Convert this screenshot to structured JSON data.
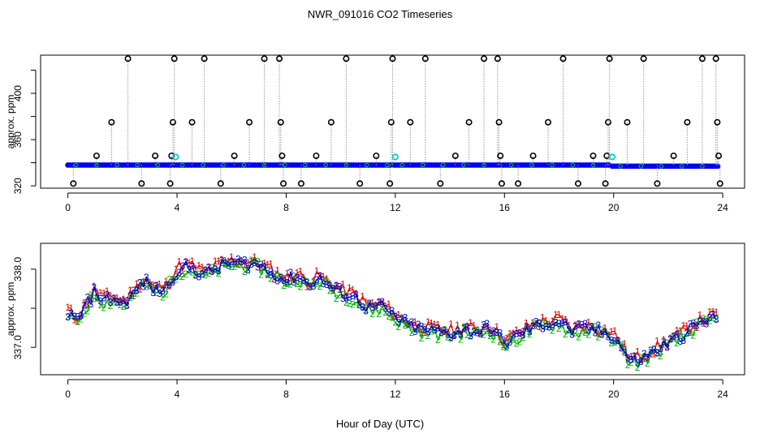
{
  "figure": {
    "title": "NWR_091016  CO2 Timeseries",
    "xlabel": "Hour of Day (UTC)"
  },
  "chart_data": [
    {
      "type": "scatter",
      "panel": "top",
      "title": "NWR_091016  CO2 Timeseries",
      "xlabel": "",
      "ylabel": "approx. ppm",
      "xlim": [
        -1,
        24.8
      ],
      "ylim": [
        318,
        433
      ],
      "xticks": [
        "0",
        "4",
        "8",
        "12",
        "16",
        "20",
        "24"
      ],
      "yticks": [
        "320",
        "360",
        "400"
      ],
      "baseline_segments": [
        {
          "x0": 0.0,
          "x1": 3.85,
          "y": 338
        },
        {
          "x0": 3.9,
          "x1": 11.85,
          "y": 338
        },
        {
          "x0": 11.95,
          "x1": 15.85,
          "y": 338
        },
        {
          "x0": 15.95,
          "x1": 19.85,
          "y": 338
        },
        {
          "x0": 19.95,
          "x1": 23.85,
          "y": 337
        }
      ],
      "high_flags": [
        {
          "x": 0.2,
          "y": 322
        },
        {
          "x": 1.05,
          "y": 346
        },
        {
          "x": 1.6,
          "y": 375
        },
        {
          "x": 2.2,
          "y": 430
        },
        {
          "x": 2.7,
          "y": 322
        },
        {
          "x": 3.2,
          "y": 346
        },
        {
          "x": 3.75,
          "y": 322
        },
        {
          "x": 3.8,
          "y": 346
        },
        {
          "x": 3.85,
          "y": 375
        },
        {
          "x": 3.9,
          "y": 430
        },
        {
          "x": 4.55,
          "y": 375
        },
        {
          "x": 5.0,
          "y": 430
        },
        {
          "x": 5.6,
          "y": 322
        },
        {
          "x": 6.1,
          "y": 346
        },
        {
          "x": 6.65,
          "y": 375
        },
        {
          "x": 7.2,
          "y": 430
        },
        {
          "x": 7.75,
          "y": 430
        },
        {
          "x": 7.8,
          "y": 375
        },
        {
          "x": 7.85,
          "y": 346
        },
        {
          "x": 7.9,
          "y": 322
        },
        {
          "x": 8.55,
          "y": 322
        },
        {
          "x": 9.1,
          "y": 346
        },
        {
          "x": 9.65,
          "y": 375
        },
        {
          "x": 10.2,
          "y": 430
        },
        {
          "x": 10.7,
          "y": 322
        },
        {
          "x": 11.3,
          "y": 346
        },
        {
          "x": 11.8,
          "y": 322
        },
        {
          "x": 11.85,
          "y": 375
        },
        {
          "x": 11.9,
          "y": 430
        },
        {
          "x": 12.55,
          "y": 375
        },
        {
          "x": 13.1,
          "y": 430
        },
        {
          "x": 13.65,
          "y": 322
        },
        {
          "x": 14.2,
          "y": 346
        },
        {
          "x": 14.7,
          "y": 375
        },
        {
          "x": 15.25,
          "y": 430
        },
        {
          "x": 15.75,
          "y": 430
        },
        {
          "x": 15.8,
          "y": 375
        },
        {
          "x": 15.85,
          "y": 346
        },
        {
          "x": 15.9,
          "y": 322
        },
        {
          "x": 16.5,
          "y": 322
        },
        {
          "x": 17.05,
          "y": 346
        },
        {
          "x": 17.6,
          "y": 375
        },
        {
          "x": 18.15,
          "y": 430
        },
        {
          "x": 18.7,
          "y": 322
        },
        {
          "x": 19.25,
          "y": 346
        },
        {
          "x": 19.7,
          "y": 322
        },
        {
          "x": 19.75,
          "y": 346
        },
        {
          "x": 19.8,
          "y": 375
        },
        {
          "x": 19.85,
          "y": 430
        },
        {
          "x": 20.5,
          "y": 375
        },
        {
          "x": 21.1,
          "y": 430
        },
        {
          "x": 21.6,
          "y": 322
        },
        {
          "x": 22.2,
          "y": 346
        },
        {
          "x": 22.7,
          "y": 375
        },
        {
          "x": 23.25,
          "y": 430
        },
        {
          "x": 23.75,
          "y": 430
        },
        {
          "x": 23.8,
          "y": 375
        },
        {
          "x": 23.85,
          "y": 346
        },
        {
          "x": 23.9,
          "y": 322
        }
      ],
      "cyan_marks": [
        {
          "x": 3.95,
          "y": 345
        },
        {
          "x": 12.0,
          "y": 345
        },
        {
          "x": 19.95,
          "y": 345
        }
      ],
      "series_colors": {
        "flag": "#000000",
        "baseline": "#0000ee",
        "fill": "#00cd00",
        "cyan": "#00cccc",
        "stem": "#999999"
      }
    },
    {
      "type": "line",
      "panel": "bottom",
      "xlabel": "Hour of Day (UTC)",
      "ylabel": "approx. ppm",
      "xlim": [
        -1,
        24.8
      ],
      "ylim": [
        336.65,
        338.33
      ],
      "xticks": [
        "0",
        "4",
        "8",
        "12",
        "16",
        "20",
        "24"
      ],
      "yticks": [
        "337.0",
        "338.0"
      ],
      "profile": [
        [
          0.0,
          337.45
        ],
        [
          0.3,
          337.32
        ],
        [
          0.7,
          337.55
        ],
        [
          1.0,
          337.72
        ],
        [
          1.3,
          337.6
        ],
        [
          1.7,
          337.63
        ],
        [
          2.0,
          337.55
        ],
        [
          2.4,
          337.68
        ],
        [
          2.8,
          337.85
        ],
        [
          3.2,
          337.72
        ],
        [
          3.6,
          337.75
        ],
        [
          4.0,
          338.0
        ],
        [
          4.5,
          338.02
        ],
        [
          5.0,
          337.93
        ],
        [
          5.5,
          338.02
        ],
        [
          6.0,
          338.08
        ],
        [
          6.5,
          338.07
        ],
        [
          7.0,
          338.05
        ],
        [
          7.5,
          337.95
        ],
        [
          8.0,
          337.85
        ],
        [
          8.4,
          337.92
        ],
        [
          8.8,
          337.8
        ],
        [
          9.2,
          337.88
        ],
        [
          9.6,
          337.78
        ],
        [
          10.0,
          337.7
        ],
        [
          10.5,
          337.65
        ],
        [
          11.0,
          337.5
        ],
        [
          11.5,
          337.52
        ],
        [
          12.0,
          337.38
        ],
        [
          12.5,
          337.28
        ],
        [
          13.0,
          337.22
        ],
        [
          13.5,
          337.2
        ],
        [
          14.0,
          337.18
        ],
        [
          14.5,
          337.22
        ],
        [
          15.0,
          337.2
        ],
        [
          15.5,
          337.25
        ],
        [
          16.0,
          337.05
        ],
        [
          16.5,
          337.15
        ],
        [
          17.0,
          337.25
        ],
        [
          17.5,
          337.3
        ],
        [
          18.0,
          337.33
        ],
        [
          18.5,
          337.2
        ],
        [
          19.0,
          337.25
        ],
        [
          19.5,
          337.2
        ],
        [
          20.0,
          337.15
        ],
        [
          20.3,
          337.0
        ],
        [
          20.6,
          336.82
        ],
        [
          21.0,
          336.85
        ],
        [
          21.5,
          336.95
        ],
        [
          22.0,
          337.05
        ],
        [
          22.5,
          337.15
        ],
        [
          23.0,
          337.28
        ],
        [
          23.5,
          337.35
        ],
        [
          23.8,
          337.38
        ]
      ],
      "series": [
        {
          "name": "1",
          "color": "#dd0000",
          "offset": 0.06
        },
        {
          "name": "2",
          "color": "#00b000",
          "offset": -0.05
        },
        {
          "name": "3",
          "color": "#0000cc",
          "offset": 0.0
        }
      ]
    }
  ]
}
